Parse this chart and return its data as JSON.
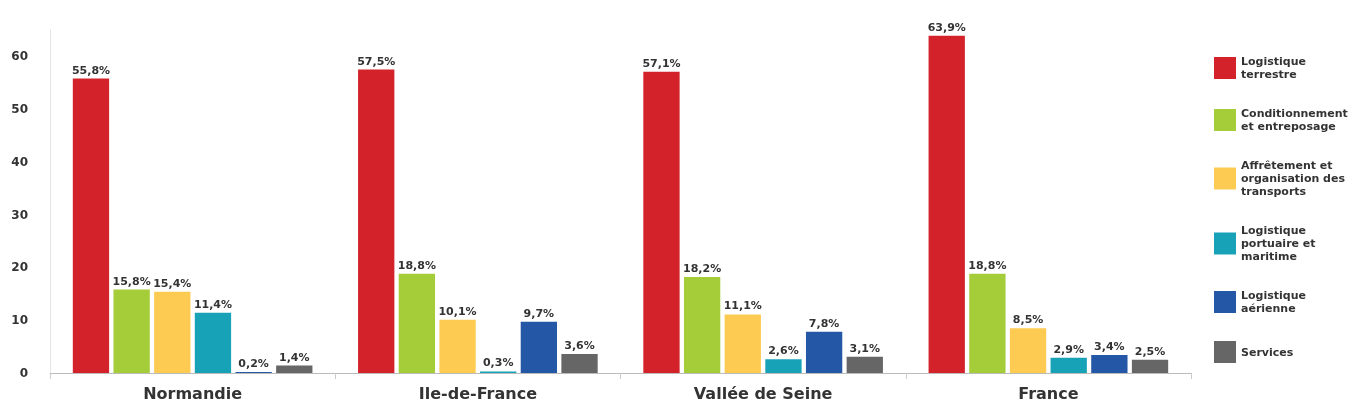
{
  "chart_data": {
    "type": "bar",
    "categories": [
      "Normandie",
      "Ile-de-France",
      "Vallée de Seine",
      "France"
    ],
    "series": [
      {
        "name": "Logistique terrestre",
        "color": "#d3222a",
        "values": [
          55.8,
          57.5,
          57.1,
          63.9
        ],
        "value_labels": [
          "55,8%",
          "57,5%",
          "57,1%",
          "63,9%"
        ]
      },
      {
        "name": "Conditionnement et entreposage",
        "color": "#a4cd39",
        "values": [
          15.8,
          18.8,
          18.2,
          18.8
        ],
        "value_labels": [
          "15,8%",
          "18,8%",
          "18,2%",
          "18,8%"
        ]
      },
      {
        "name": "Affrêtement et organisation des transports",
        "color": "#fecb52",
        "values": [
          15.4,
          10.1,
          11.1,
          8.5
        ],
        "value_labels": [
          "15,4%",
          "10,1%",
          "11,1%",
          "8,5%"
        ]
      },
      {
        "name": "Logistique portuaire et maritime",
        "color": "#17a2b8",
        "values": [
          11.4,
          0.3,
          2.6,
          2.9
        ],
        "value_labels": [
          "11,4%",
          "0,3%",
          "2,6%",
          "2,9%"
        ]
      },
      {
        "name": "Logistique aérienne",
        "color": "#2458a6",
        "values": [
          0.2,
          9.7,
          7.8,
          3.4
        ],
        "value_labels": [
          "0,2%",
          "9,7%",
          "7,8%",
          "3,4%"
        ]
      },
      {
        "name": "Services",
        "color": "#666666",
        "values": [
          1.4,
          3.6,
          3.1,
          2.5
        ],
        "value_labels": [
          "1,4%",
          "3,6%",
          "3,1%",
          "2,5%"
        ]
      }
    ],
    "ylim": [
      0,
      65
    ],
    "yticks": [
      0,
      10,
      20,
      30,
      40,
      50,
      60
    ],
    "grid": false,
    "legend": "right"
  }
}
